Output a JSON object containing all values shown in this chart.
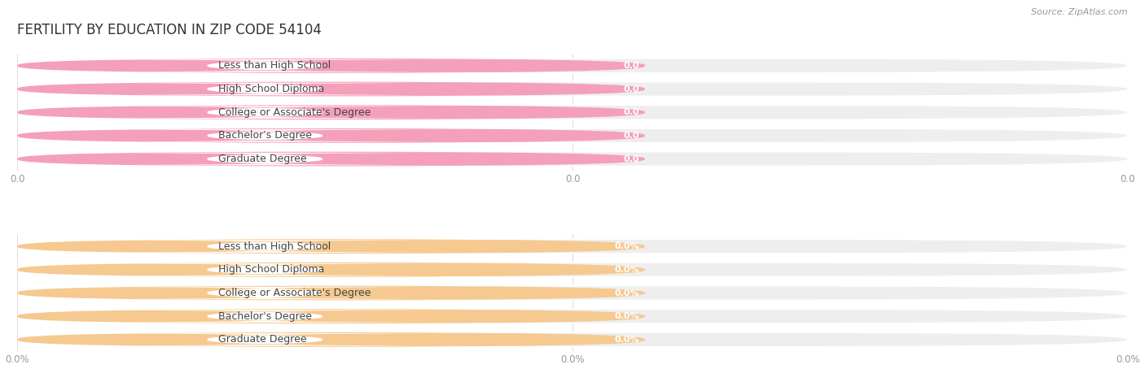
{
  "title": "FERTILITY BY EDUCATION IN ZIP CODE 54104",
  "source_text": "Source: ZipAtlas.com",
  "categories": [
    "Less than High School",
    "High School Diploma",
    "College or Associate's Degree",
    "Bachelor's Degree",
    "Graduate Degree"
  ],
  "top_values": [
    0.0,
    0.0,
    0.0,
    0.0,
    0.0
  ],
  "top_labels": [
    "0.0",
    "0.0",
    "0.0",
    "0.0",
    "0.0"
  ],
  "bottom_values": [
    0.0,
    0.0,
    0.0,
    0.0,
    0.0
  ],
  "bottom_labels": [
    "0.0%",
    "0.0%",
    "0.0%",
    "0.0%",
    "0.0%"
  ],
  "top_bar_color": "#F4A0BA",
  "top_bar_bg": "#EEEEEE",
  "bottom_bar_color": "#F5C990",
  "bottom_bar_bg": "#EEEEEE",
  "top_tick_label": "0.0",
  "bottom_tick_label": "0.0%",
  "background_color": "#FFFFFF",
  "title_fontsize": 12,
  "label_fontsize": 9,
  "value_fontsize": 8,
  "tick_fontsize": 8.5,
  "source_fontsize": 8,
  "title_color": "#333333",
  "label_color": "#444444",
  "tick_color": "#999999",
  "source_color": "#999999",
  "grid_color": "#DDDDDD",
  "white_label_bg": "#FFFFFF"
}
